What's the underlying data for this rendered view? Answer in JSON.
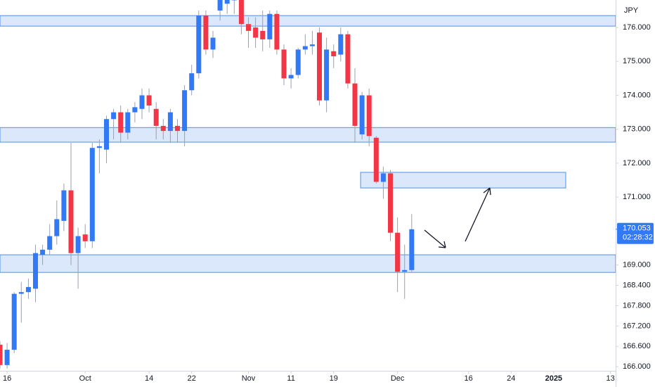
{
  "chart_data": {
    "type": "candlestick",
    "currency": "JPY",
    "up_color": "#3179f5",
    "down_color": "#f23645",
    "zone_fill": "#dbe7fb",
    "zone_stroke": "#4f8fe6",
    "ylim": [
      165.88,
      176.81
    ],
    "xlim": [
      0,
      86.73
    ],
    "yticks": [
      {
        "value": 176,
        "label": "176.000"
      },
      {
        "value": 175,
        "label": "175.000"
      },
      {
        "value": 174,
        "label": "174.000"
      },
      {
        "value": 173,
        "label": "173.000"
      },
      {
        "value": 172,
        "label": "172.000"
      },
      {
        "value": 171,
        "label": "171.000"
      },
      {
        "value": 169,
        "label": "169.000"
      },
      {
        "value": 168.4,
        "label": "168.400"
      },
      {
        "value": 167.8,
        "label": "167.800"
      },
      {
        "value": 167.2,
        "label": "167.200"
      },
      {
        "value": 166.6,
        "label": "166.600"
      },
      {
        "value": 166,
        "label": "166.000"
      }
    ],
    "xticks": [
      {
        "value": 1,
        "label": "16"
      },
      {
        "value": 12,
        "label": "Oct"
      },
      {
        "value": 21,
        "label": "14"
      },
      {
        "value": 27,
        "label": "22"
      },
      {
        "value": 35,
        "label": "Nov"
      },
      {
        "value": 41,
        "label": "11"
      },
      {
        "value": 47,
        "label": "19"
      },
      {
        "value": 56,
        "label": "Dec"
      },
      {
        "value": 66,
        "label": "16"
      },
      {
        "value": 72,
        "label": "24"
      },
      {
        "value": 78,
        "label": "2025"
      },
      {
        "value": 86,
        "label": "13"
      }
    ],
    "bold_xtick": 10,
    "current_price": {
      "value": 170.053,
      "label": "170.053",
      "countdown": "02:28:32"
    },
    "zones": [
      {
        "high": 176.35,
        "low": 176.04
      },
      {
        "high": 173.05,
        "low": 172.62
      },
      {
        "high": 171.73,
        "low": 171.27,
        "start": 50.8,
        "end": 79.7
      },
      {
        "high": 169.3,
        "low": 168.78
      }
    ],
    "ohlc": [
      [
        166.65,
        166.75,
        165.95,
        166.05
      ],
      [
        166.05,
        166.7,
        165.95,
        166.5
      ],
      [
        166.5,
        168.2,
        166.4,
        168.15
      ],
      [
        168.15,
        168.5,
        167.3,
        168.2
      ],
      [
        168.2,
        168.6,
        168.0,
        168.35
      ],
      [
        168.3,
        169.6,
        167.9,
        169.35
      ],
      [
        169.3,
        169.6,
        169.0,
        169.45
      ],
      [
        169.45,
        170.2,
        169.3,
        169.85
      ],
      [
        169.85,
        170.9,
        169.6,
        170.35
      ],
      [
        170.3,
        171.4,
        170.0,
        171.2
      ],
      [
        171.2,
        172.6,
        169.0,
        169.35
      ],
      [
        169.35,
        170.1,
        168.3,
        169.85
      ],
      [
        169.9,
        170.2,
        169.5,
        169.7
      ],
      [
        169.7,
        172.6,
        169.5,
        172.45
      ],
      [
        172.45,
        172.7,
        171.7,
        172.5
      ],
      [
        172.4,
        173.4,
        172.0,
        173.3
      ],
      [
        173.3,
        173.6,
        172.7,
        173.5
      ],
      [
        173.5,
        173.7,
        172.6,
        172.9
      ],
      [
        172.9,
        173.6,
        172.7,
        173.5
      ],
      [
        173.5,
        173.8,
        173.2,
        173.65
      ],
      [
        173.6,
        174.2,
        173.3,
        174.0
      ],
      [
        174.0,
        174.2,
        173.5,
        173.7
      ],
      [
        173.6,
        173.8,
        172.7,
        173.1
      ],
      [
        173.1,
        173.3,
        172.7,
        172.95
      ],
      [
        172.95,
        173.6,
        172.6,
        173.5
      ],
      [
        173.1,
        173.3,
        172.6,
        172.95
      ],
      [
        172.95,
        174.3,
        172.5,
        174.15
      ],
      [
        174.15,
        174.9,
        174.0,
        174.65
      ],
      [
        174.65,
        176.5,
        174.5,
        176.35
      ],
      [
        176.35,
        176.5,
        175.2,
        175.35
      ],
      [
        175.35,
        175.9,
        175.1,
        175.7
      ],
      [
        176.5,
        177.0,
        176.2,
        176.9
      ],
      [
        176.7,
        177.0,
        176.4,
        176.9
      ],
      [
        176.8,
        177.1,
        176.4,
        177.0
      ],
      [
        176.9,
        177.0,
        175.8,
        176.1
      ],
      [
        176.1,
        176.3,
        175.4,
        175.9
      ],
      [
        176.0,
        176.3,
        175.4,
        175.7
      ],
      [
        175.9,
        176.5,
        175.3,
        175.65
      ],
      [
        175.65,
        176.5,
        175.4,
        176.4
      ],
      [
        176.4,
        176.5,
        175.2,
        175.35
      ],
      [
        175.35,
        175.5,
        174.3,
        174.5
      ],
      [
        174.5,
        174.8,
        174.2,
        174.6
      ],
      [
        174.6,
        175.4,
        174.5,
        175.35
      ],
      [
        175.35,
        175.8,
        175.2,
        175.45
      ],
      [
        175.45,
        175.9,
        175.2,
        175.5
      ],
      [
        175.85,
        176.0,
        173.7,
        173.85
      ],
      [
        173.85,
        175.7,
        173.5,
        175.35
      ],
      [
        175.3,
        175.5,
        174.8,
        175.15
      ],
      [
        175.2,
        176.0,
        175.0,
        175.8
      ],
      [
        175.8,
        175.9,
        174.2,
        174.35
      ],
      [
        174.35,
        174.8,
        172.6,
        173.1
      ],
      [
        172.85,
        174.1,
        172.7,
        174.0
      ],
      [
        174.0,
        174.2,
        172.5,
        172.8
      ],
      [
        172.75,
        172.8,
        171.4,
        171.45
      ],
      [
        171.45,
        171.9,
        170.95,
        171.7
      ],
      [
        171.7,
        171.8,
        169.7,
        169.95
      ],
      [
        169.95,
        170.4,
        168.2,
        168.8
      ],
      [
        168.8,
        169.6,
        168.0,
        168.85
      ],
      [
        168.85,
        170.5,
        168.8,
        170.053
      ]
    ]
  }
}
